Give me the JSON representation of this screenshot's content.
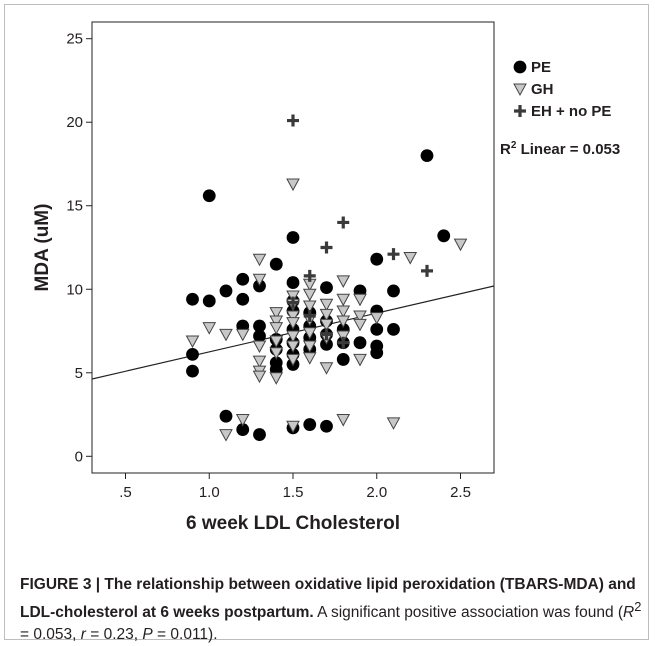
{
  "chart_data": {
    "type": "scatter",
    "xlabel": "6 week LDL Cholesterol",
    "ylabel": "MDA (uM)",
    "xlim": [
      0.3,
      2.7
    ],
    "ylim": [
      -1,
      26
    ],
    "x_ticks": [
      0.5,
      1.0,
      1.5,
      2.0,
      2.5
    ],
    "x_tick_labels": [
      ".5",
      "1.0",
      "1.5",
      "2.0",
      "2.5"
    ],
    "y_ticks": [
      0,
      5,
      10,
      15,
      20,
      25
    ],
    "y_tick_labels": [
      "0",
      "5",
      "10",
      "15",
      "20",
      "25"
    ],
    "grid": false,
    "legend_position": "right",
    "series": [
      {
        "name": "PE",
        "marker": "circle",
        "color": "#000000",
        "points": [
          [
            0.9,
            9.4
          ],
          [
            0.9,
            6.1
          ],
          [
            0.9,
            5.1
          ],
          [
            1.0,
            15.6
          ],
          [
            1.0,
            9.3
          ],
          [
            1.1,
            9.9
          ],
          [
            1.1,
            2.4
          ],
          [
            1.2,
            10.6
          ],
          [
            1.2,
            9.4
          ],
          [
            1.2,
            7.8
          ],
          [
            1.2,
            1.6
          ],
          [
            1.3,
            10.2
          ],
          [
            1.3,
            7.8
          ],
          [
            1.3,
            7.2
          ],
          [
            1.3,
            1.3
          ],
          [
            1.4,
            11.5
          ],
          [
            1.4,
            7.0
          ],
          [
            1.4,
            6.4
          ],
          [
            1.4,
            5.6
          ],
          [
            1.4,
            5.2
          ],
          [
            1.5,
            13.1
          ],
          [
            1.5,
            10.4
          ],
          [
            1.5,
            9.3
          ],
          [
            1.5,
            8.7
          ],
          [
            1.5,
            7.6
          ],
          [
            1.5,
            6.8
          ],
          [
            1.5,
            6.1
          ],
          [
            1.5,
            5.5
          ],
          [
            1.5,
            1.7
          ],
          [
            1.6,
            8.6
          ],
          [
            1.6,
            7.8
          ],
          [
            1.6,
            7.1
          ],
          [
            1.6,
            6.4
          ],
          [
            1.6,
            1.9
          ],
          [
            1.7,
            10.1
          ],
          [
            1.7,
            8.1
          ],
          [
            1.7,
            7.3
          ],
          [
            1.7,
            6.7
          ],
          [
            1.7,
            1.8
          ],
          [
            1.8,
            7.6
          ],
          [
            1.8,
            6.8
          ],
          [
            1.8,
            5.8
          ],
          [
            1.9,
            9.9
          ],
          [
            1.9,
            6.8
          ],
          [
            2.0,
            11.8
          ],
          [
            2.0,
            8.7
          ],
          [
            2.0,
            7.6
          ],
          [
            2.0,
            6.6
          ],
          [
            2.0,
            6.2
          ],
          [
            2.1,
            9.9
          ],
          [
            2.1,
            7.6
          ],
          [
            2.3,
            18.0
          ],
          [
            2.4,
            13.2
          ]
        ]
      },
      {
        "name": "GH",
        "marker": "triangle-down",
        "color": "#c8c8c8",
        "points": [
          [
            0.9,
            6.9
          ],
          [
            1.0,
            7.7
          ],
          [
            1.1,
            7.3
          ],
          [
            1.1,
            1.3
          ],
          [
            1.2,
            7.3
          ],
          [
            1.2,
            2.2
          ],
          [
            1.3,
            11.8
          ],
          [
            1.3,
            10.6
          ],
          [
            1.3,
            6.6
          ],
          [
            1.3,
            5.7
          ],
          [
            1.3,
            5.1
          ],
          [
            1.3,
            4.8
          ],
          [
            1.4,
            8.6
          ],
          [
            1.4,
            8.1
          ],
          [
            1.4,
            7.7
          ],
          [
            1.4,
            6.9
          ],
          [
            1.4,
            6.2
          ],
          [
            1.4,
            4.7
          ],
          [
            1.5,
            16.3
          ],
          [
            1.5,
            9.6
          ],
          [
            1.5,
            9.1
          ],
          [
            1.5,
            8.4
          ],
          [
            1.5,
            8.0
          ],
          [
            1.5,
            7.2
          ],
          [
            1.5,
            6.6
          ],
          [
            1.5,
            5.8
          ],
          [
            1.5,
            1.8
          ],
          [
            1.6,
            10.3
          ],
          [
            1.6,
            9.7
          ],
          [
            1.6,
            9.0
          ],
          [
            1.6,
            8.2
          ],
          [
            1.6,
            7.4
          ],
          [
            1.6,
            6.6
          ],
          [
            1.6,
            5.9
          ],
          [
            1.7,
            9.1
          ],
          [
            1.7,
            8.5
          ],
          [
            1.7,
            7.9
          ],
          [
            1.7,
            7.1
          ],
          [
            1.7,
            5.3
          ],
          [
            1.8,
            10.5
          ],
          [
            1.8,
            9.4
          ],
          [
            1.8,
            8.7
          ],
          [
            1.8,
            8.1
          ],
          [
            1.8,
            7.2
          ],
          [
            1.8,
            2.2
          ],
          [
            1.9,
            9.4
          ],
          [
            1.9,
            8.4
          ],
          [
            1.9,
            7.9
          ],
          [
            1.9,
            5.8
          ],
          [
            2.0,
            8.3
          ],
          [
            2.1,
            2.0
          ],
          [
            2.2,
            11.9
          ],
          [
            2.5,
            12.7
          ]
        ]
      },
      {
        "name": "EH + no PE",
        "marker": "plus",
        "color": "#3a3a3a",
        "points": [
          [
            1.5,
            20.1
          ],
          [
            1.5,
            9.2
          ],
          [
            1.6,
            10.8
          ],
          [
            1.6,
            8.4
          ],
          [
            1.7,
            12.5
          ],
          [
            1.7,
            7.3
          ],
          [
            1.8,
            14.0
          ],
          [
            1.8,
            6.8
          ],
          [
            2.1,
            12.1
          ],
          [
            2.3,
            11.1
          ]
        ]
      }
    ],
    "fit_line": {
      "type": "linear",
      "x_range": [
        0.3,
        2.7
      ],
      "intercept": 3.93,
      "slope": 2.32,
      "color": "#222222"
    },
    "annotation": {
      "prefix": "R",
      "superscript": "2",
      "text": " Linear = 0.053"
    }
  },
  "caption": {
    "bold_text": "FIGURE 3 | The relationship between oxidative lipid peroxidation (TBARS-MDA) and LDL-cholesterol at 6 weeks postpartum.",
    "text_1": " A significant positive association was found (",
    "r2_symbol": "R",
    "r2_sup": "2",
    "text_2": " = 0.053, ",
    "r_symbol": "r",
    "text_3": " = 0.23, ",
    "p_symbol": "P",
    "text_4": " = 0.011)."
  }
}
